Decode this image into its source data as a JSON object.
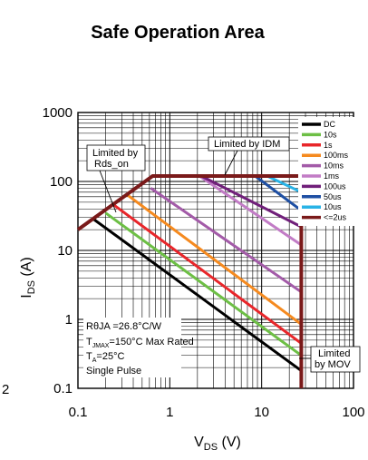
{
  "chart_data": {
    "type": "line",
    "title": "Safe Operation Area",
    "xlabel": "V_DS (V)",
    "ylabel": "I_DS (A)",
    "xscale": "log",
    "yscale": "log",
    "xlim": [
      0.1,
      100
    ],
    "ylim": [
      0.1,
      1000
    ],
    "xticks": [
      "0.1",
      "1",
      "10",
      "100"
    ],
    "yticks": [
      "0.1",
      "1",
      "10",
      "100",
      "1000"
    ],
    "grid": true,
    "legend_position": "top-right",
    "series": [
      {
        "name": "DC",
        "color": "#000000",
        "x": [
          0.15,
          27
        ],
        "y": [
          28,
          0.18
        ]
      },
      {
        "name": "10s",
        "color": "#6dbf45",
        "x": [
          0.2,
          27
        ],
        "y": [
          35,
          0.3
        ]
      },
      {
        "name": "1s",
        "color": "#e8262a",
        "x": [
          0.25,
          27
        ],
        "y": [
          45,
          0.45
        ]
      },
      {
        "name": "100ms",
        "color": "#f58a1f",
        "x": [
          0.35,
          27
        ],
        "y": [
          63,
          0.85
        ]
      },
      {
        "name": "10ms",
        "color": "#a35ba8",
        "x": [
          0.62,
          27
        ],
        "y": [
          80,
          2.5
        ]
      },
      {
        "name": "1ms",
        "color": "#c27cc6",
        "x": [
          2.1,
          27
        ],
        "y": [
          120,
          12
        ]
      },
      {
        "name": "100us",
        "color": "#701f7a",
        "x": [
          2.2,
          27
        ],
        "y": [
          120,
          22
        ]
      },
      {
        "name": "50us",
        "color": "#1e4fa3",
        "x": [
          8.5,
          27
        ],
        "y": [
          120,
          38
        ]
      },
      {
        "name": "10us",
        "color": "#29b3e6",
        "x": [
          11.5,
          27
        ],
        "y": [
          120,
          70
        ]
      },
      {
        "name": "<=2us",
        "color": "#7a1a1a",
        "x": [
          0.1,
          0.65,
          27,
          27
        ],
        "y": [
          20,
          120,
          120,
          0.1
        ]
      }
    ],
    "annotations": [
      {
        "text": "Limited by Rds_on",
        "line1": "Limited by",
        "line2": "Rds_on"
      },
      {
        "text": "Limited by IDM",
        "line1": "Limited by IDM"
      },
      {
        "text": "Limited by MOV",
        "line1": "Limited",
        "line2": "by MOV"
      }
    ],
    "conditions": {
      "line1": "RθJA =26.8°C/W",
      "line2_T": "T",
      "line2_sub": "JMAX",
      "line2_rest": "=150°C Max Rated",
      "line3_T": "T",
      "line3_sub": "A",
      "line3_rest": "=25°C",
      "line4": "Single Pulse"
    },
    "xlabel_main": "V",
    "xlabel_sub": "DS",
    "xlabel_unit": " (V)",
    "ylabel_main": "I",
    "ylabel_sub": "DS",
    "ylabel_unit": " (A)",
    "edge_label": "2"
  }
}
